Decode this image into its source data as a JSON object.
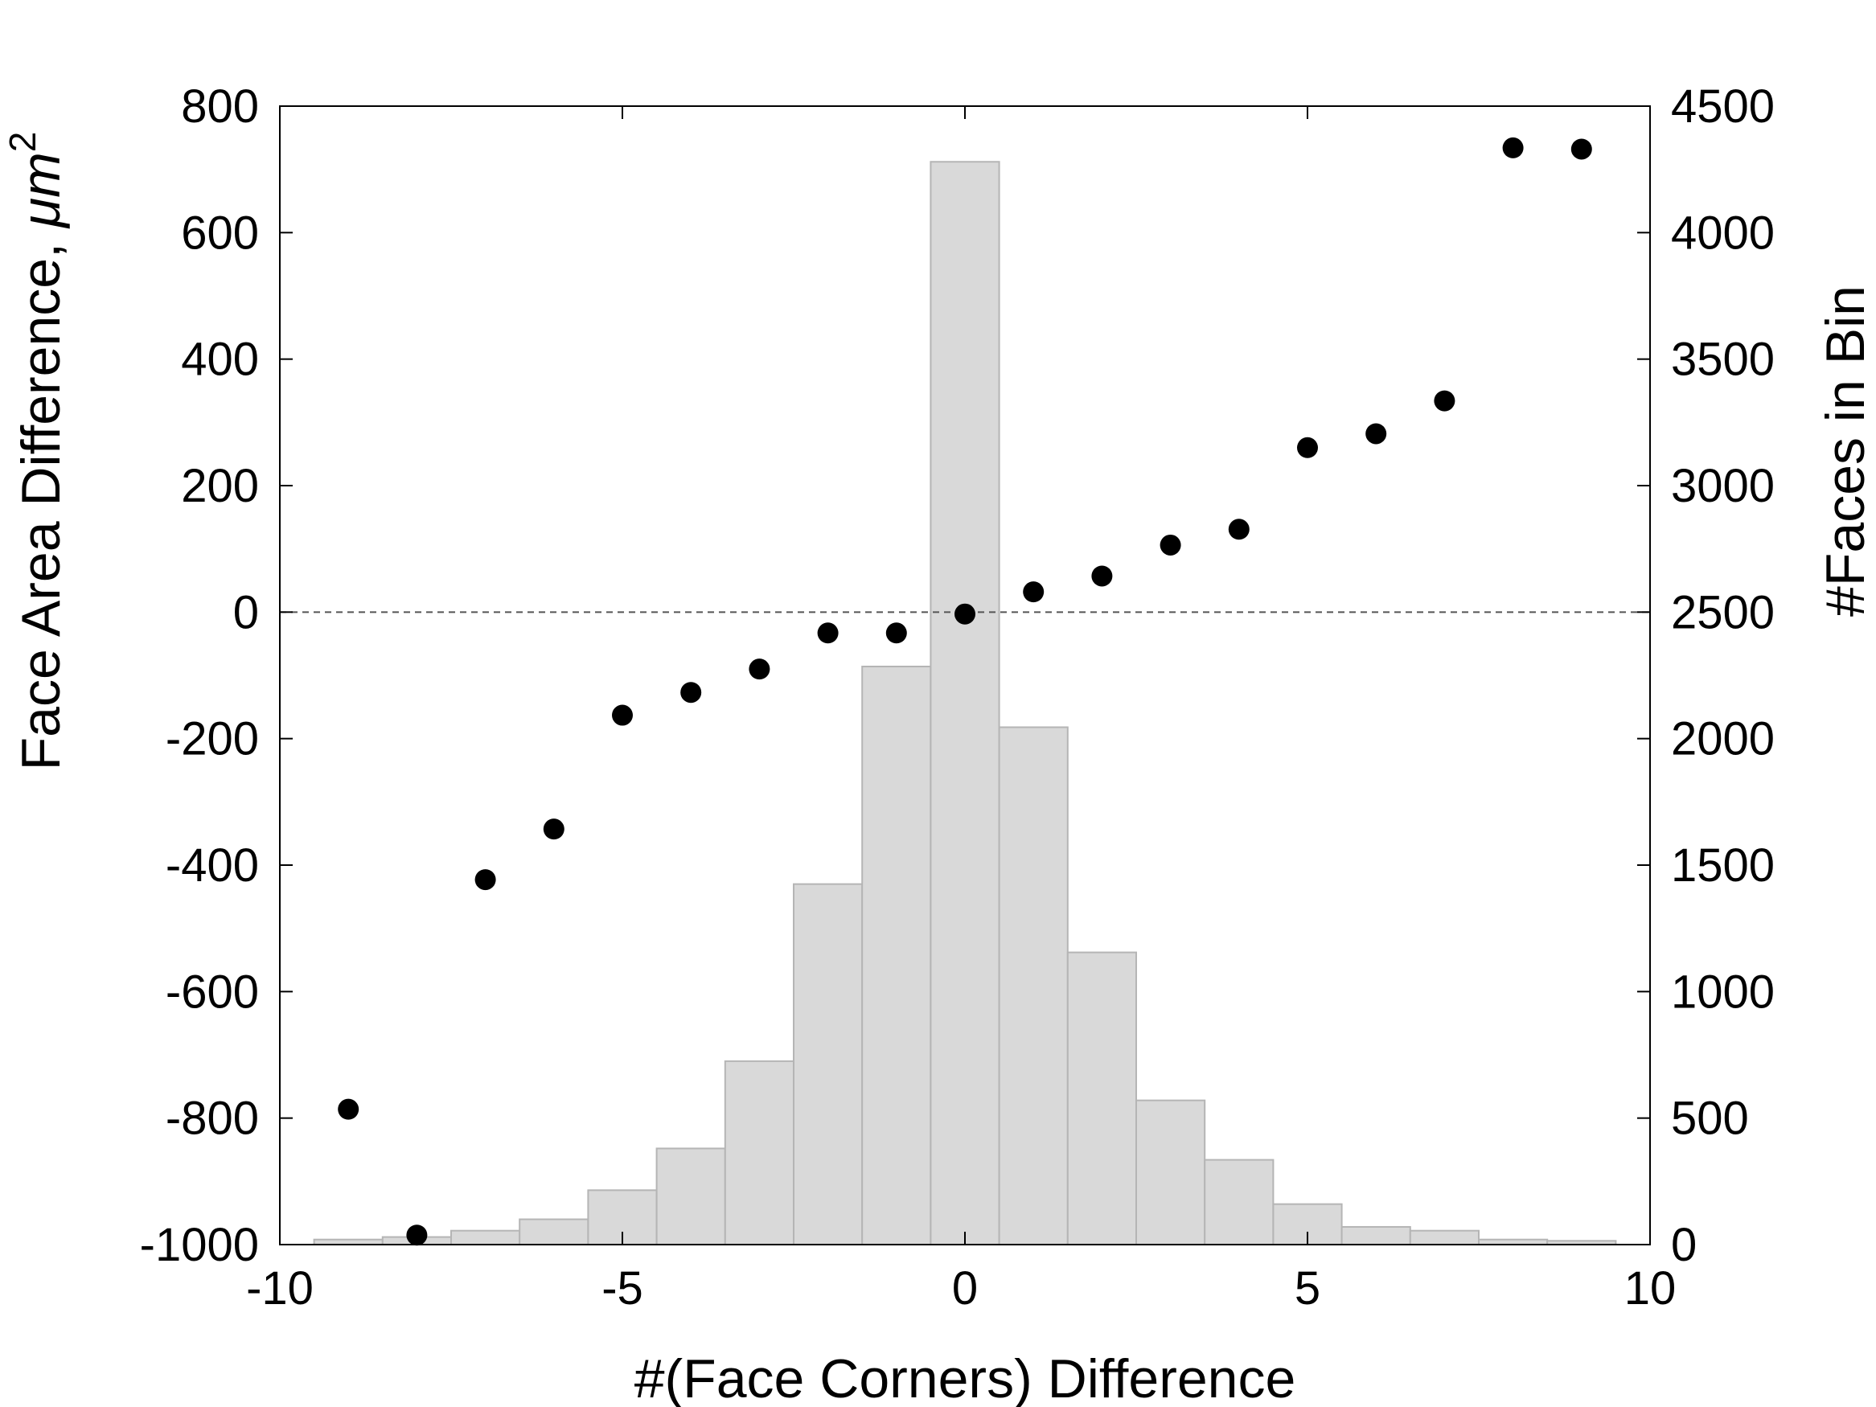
{
  "chart_data": {
    "type": "scatter",
    "xlabel": "#(Face Corners) Difference",
    "ylabel_left_main": "Face Area Difference, ",
    "ylabel_left_unit": "μm",
    "ylabel_left_sup": "2",
    "ylabel_right": "#Faces in Bin",
    "xlim": [
      -10,
      10
    ],
    "ylim_left": [
      -1000,
      800
    ],
    "ylim_right": [
      0,
      4500
    ],
    "x_ticks": [
      -10,
      -5,
      0,
      5,
      10
    ],
    "y_left_ticks": [
      -1000,
      -800,
      -600,
      -400,
      -200,
      0,
      200,
      400,
      600,
      800
    ],
    "y_right_ticks": [
      0,
      500,
      1000,
      1500,
      2000,
      2500,
      3000,
      3500,
      4000,
      4500
    ],
    "zero_line": {
      "y": 0,
      "style": "dashed"
    },
    "histogram": {
      "axis": "right",
      "bin_width": 1,
      "color": "#d9d9d9",
      "edge_color": "#b5b5b5",
      "centers": [
        -9,
        -8,
        -7,
        -6,
        -5,
        -4,
        -3,
        -2,
        -1,
        0,
        1,
        2,
        3,
        4,
        5,
        6,
        7,
        8,
        9
      ],
      "counts": [
        20,
        30,
        55,
        100,
        215,
        380,
        725,
        1425,
        2285,
        4280,
        2045,
        1155,
        570,
        335,
        160,
        70,
        55,
        20,
        15
      ]
    },
    "scatter": {
      "axis": "left",
      "color": "#000000",
      "x": [
        -9,
        -8,
        -7,
        -6,
        -5,
        -4,
        -3,
        -2,
        -1,
        0,
        1,
        2,
        3,
        4,
        5,
        6,
        7,
        8,
        9
      ],
      "y": [
        -786,
        -985,
        -423,
        -343,
        -163,
        -127,
        -90,
        -33,
        -33,
        -3,
        32,
        57,
        106,
        131,
        260,
        282,
        334,
        734,
        732
      ]
    },
    "grid": false,
    "legend": "none"
  }
}
